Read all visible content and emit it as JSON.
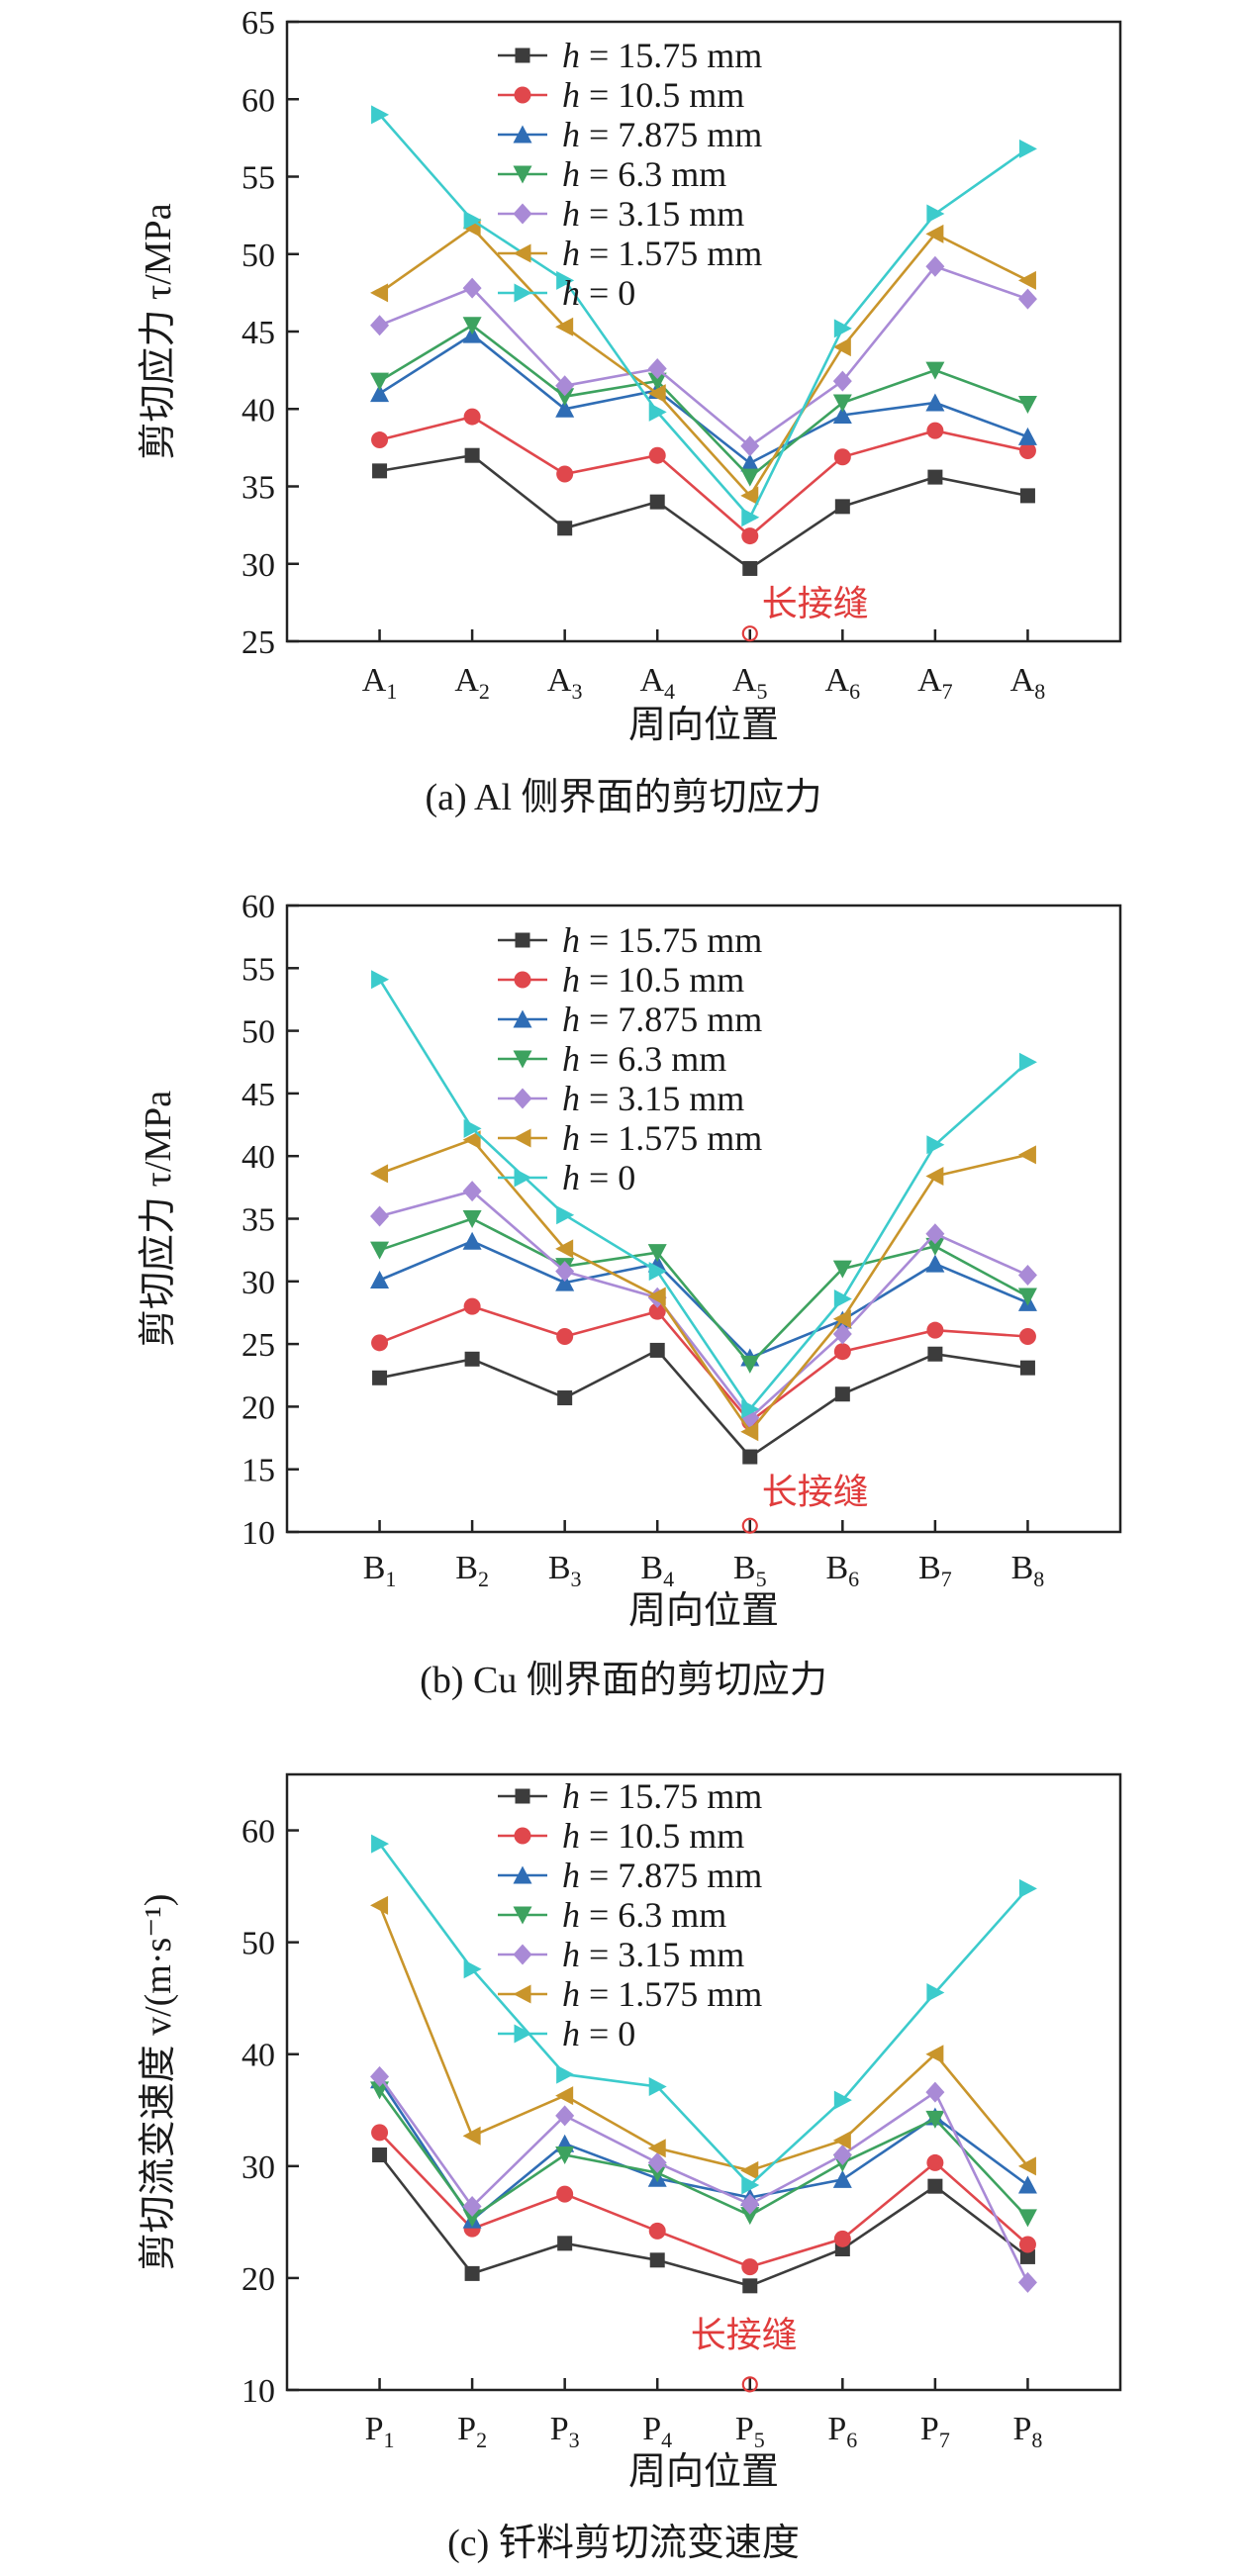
{
  "colors": {
    "series": [
      "#3c3c3c",
      "#e0474c",
      "#2f6db5",
      "#3da25f",
      "#a98ad6",
      "#c9952b",
      "#3ccbcc"
    ],
    "annotation": "#e03c3c"
  },
  "markers": [
    "square",
    "circle",
    "triangle-up",
    "triangle-down",
    "diamond",
    "triangle-left",
    "triangle-right"
  ],
  "legend": {
    "prefix": "h",
    "entries": [
      " = 15.75 mm",
      " = 10.5 mm",
      " = 7.875 mm",
      " = 6.3 mm",
      " = 3.15 mm",
      " = 1.575 mm",
      " = 0"
    ]
  },
  "chart_data": [
    {
      "type": "line",
      "caption": "(a) Al 侧界面的剪切应力",
      "ylabel": "剪切应力 τ/MPa",
      "xlabel": "周向位置",
      "category_prefix": "A",
      "categories": [
        "1",
        "2",
        "3",
        "4",
        "5",
        "6",
        "7",
        "8"
      ],
      "ylim": [
        25,
        65
      ],
      "yticks": [
        25,
        30,
        35,
        40,
        45,
        50,
        55,
        60,
        65
      ],
      "annotation": {
        "text": "长接缝",
        "x": 5,
        "y": 25.5
      },
      "series": [
        {
          "name": "h = 15.75 mm",
          "values": [
            36.0,
            37.0,
            32.3,
            34.0,
            29.7,
            33.7,
            35.6,
            34.4
          ]
        },
        {
          "name": "h = 10.5 mm",
          "values": [
            38.0,
            39.5,
            35.8,
            37.0,
            31.8,
            36.9,
            38.6,
            37.3
          ]
        },
        {
          "name": "h = 7.875 mm",
          "values": [
            41.0,
            44.8,
            40.0,
            41.2,
            36.5,
            39.6,
            40.4,
            38.2
          ]
        },
        {
          "name": "h = 6.3 mm",
          "values": [
            41.8,
            45.4,
            40.8,
            41.8,
            35.6,
            40.4,
            42.5,
            40.3
          ]
        },
        {
          "name": "h = 3.15 mm",
          "values": [
            45.4,
            47.8,
            41.5,
            42.6,
            37.6,
            41.8,
            49.2,
            47.1
          ]
        },
        {
          "name": "h = 1.575 mm",
          "values": [
            47.5,
            51.7,
            45.3,
            41.0,
            34.4,
            44.0,
            51.3,
            48.3
          ]
        },
        {
          "name": "h = 0",
          "values": [
            59.0,
            52.2,
            48.3,
            39.8,
            33.0,
            45.2,
            52.6,
            56.8
          ]
        }
      ]
    },
    {
      "type": "line",
      "caption": "(b) Cu 侧界面的剪切应力",
      "ylabel": "剪切应力 τ/MPa",
      "xlabel": "周向位置",
      "category_prefix": "B",
      "categories": [
        "1",
        "2",
        "3",
        "4",
        "5",
        "6",
        "7",
        "8"
      ],
      "ylim": [
        10,
        60
      ],
      "yticks": [
        10,
        15,
        20,
        25,
        30,
        35,
        40,
        45,
        50,
        55,
        60
      ],
      "annotation": {
        "text": "长接缝",
        "x": 5,
        "y": 10.5
      },
      "series": [
        {
          "name": "h = 15.75 mm",
          "values": [
            22.3,
            23.8,
            20.7,
            24.5,
            16.0,
            21.0,
            24.2,
            23.1
          ]
        },
        {
          "name": "h = 10.5 mm",
          "values": [
            25.1,
            28.0,
            25.6,
            27.6,
            18.8,
            24.4,
            26.1,
            25.6
          ]
        },
        {
          "name": "h = 7.875 mm",
          "values": [
            30.1,
            33.2,
            29.9,
            31.4,
            23.9,
            26.9,
            31.4,
            28.3
          ]
        },
        {
          "name": "h = 6.3 mm",
          "values": [
            32.5,
            35.0,
            31.2,
            32.3,
            23.4,
            31.0,
            32.8,
            28.8
          ]
        },
        {
          "name": "h = 3.15 mm",
          "values": [
            35.2,
            37.2,
            30.8,
            28.7,
            19.1,
            25.8,
            33.8,
            30.5
          ]
        },
        {
          "name": "h = 1.575 mm",
          "values": [
            38.6,
            41.3,
            32.6,
            28.8,
            18.0,
            27.0,
            38.4,
            40.1
          ]
        },
        {
          "name": "h = 0",
          "values": [
            54.1,
            42.2,
            35.3,
            30.8,
            19.8,
            28.6,
            40.9,
            47.5
          ]
        }
      ]
    },
    {
      "type": "line",
      "caption": "(c) 钎料剪切流变速度",
      "ylabel": "剪切流变速度 v/(m·s⁻¹)",
      "xlabel": "周向位置",
      "category_prefix": "P",
      "categories": [
        "1",
        "2",
        "3",
        "4",
        "5",
        "6",
        "7",
        "8"
      ],
      "ylim": [
        10,
        65
      ],
      "yticks": [
        10,
        20,
        30,
        40,
        50,
        60
      ],
      "annotation": {
        "text": "长接缝",
        "x": 5,
        "y": 10.5
      },
      "series": [
        {
          "name": "h = 15.75 mm",
          "values": [
            31.0,
            20.4,
            23.1,
            21.6,
            19.3,
            22.6,
            28.2,
            21.9
          ]
        },
        {
          "name": "h = 10.5 mm",
          "values": [
            33.0,
            24.4,
            27.5,
            24.2,
            21.0,
            23.5,
            30.3,
            23.0
          ]
        },
        {
          "name": "h = 7.875 mm",
          "values": [
            37.7,
            25.2,
            32.0,
            28.9,
            27.2,
            28.8,
            34.4,
            28.3
          ]
        },
        {
          "name": "h = 6.3 mm",
          "values": [
            36.8,
            25.4,
            31.0,
            29.4,
            25.6,
            30.3,
            34.2,
            25.4
          ]
        },
        {
          "name": "h = 3.15 mm",
          "values": [
            38.0,
            26.4,
            34.5,
            30.3,
            26.6,
            31.0,
            36.6,
            19.6
          ]
        },
        {
          "name": "h = 1.575 mm",
          "values": [
            53.3,
            32.7,
            36.3,
            31.6,
            29.6,
            32.3,
            40.0,
            30.0
          ]
        },
        {
          "name": "h = 0",
          "values": [
            58.8,
            47.6,
            38.2,
            37.1,
            28.3,
            35.9,
            45.5,
            54.8
          ]
        }
      ]
    }
  ]
}
